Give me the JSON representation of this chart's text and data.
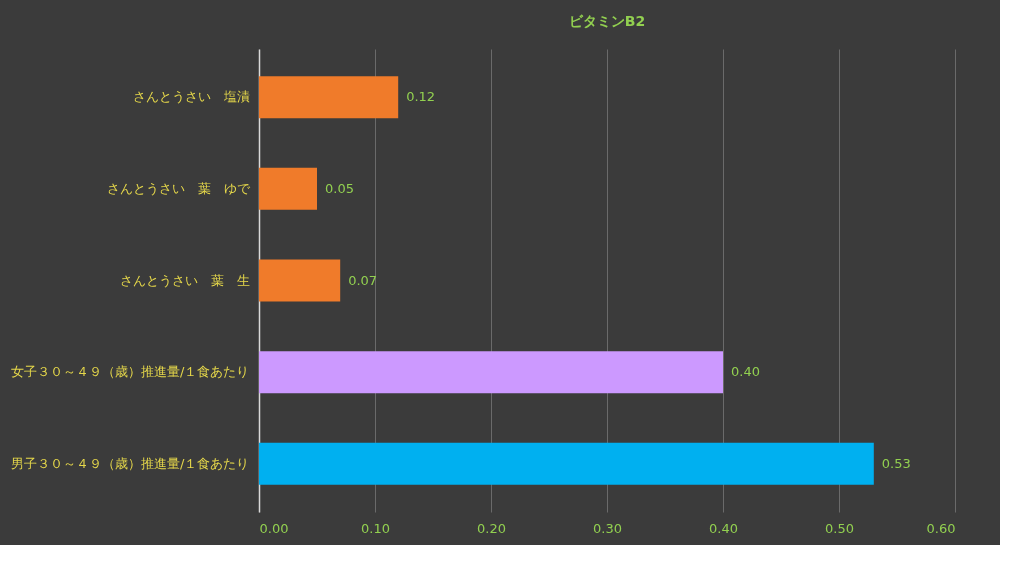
{
  "chart_data": {
    "type": "bar",
    "orientation": "horizontal",
    "title": "ビタミンB2",
    "categories": [
      "さんとうさい　塩漬",
      "さんとうさい　葉　ゆで",
      "さんとうさい　葉　生",
      "女子３０～４９（歳）推進量/１食あたり",
      "男子３０～４９（歳）推進量/１食あたり"
    ],
    "values": [
      0.12,
      0.05,
      0.07,
      0.4,
      0.53
    ],
    "colors": [
      "#f07b2a",
      "#f07b2a",
      "#f07b2a",
      "#cc99ff",
      "#00b0f0"
    ],
    "value_labels": [
      "0.12",
      "0.05",
      "0.07",
      "0.40",
      "0.53"
    ],
    "xlim": [
      0,
      0.6
    ],
    "xticks": [
      {
        "value": 0,
        "label": "0.00"
      },
      {
        "value": 0.1,
        "label": "0.10"
      },
      {
        "value": 0.2,
        "label": "0.20"
      },
      {
        "value": 0.3,
        "label": "0.30"
      },
      {
        "value": 0.4,
        "label": "0.40"
      },
      {
        "value": 0.5,
        "label": "0.50"
      },
      {
        "value": 0.6,
        "label": "0.60"
      }
    ],
    "grid": "x"
  }
}
